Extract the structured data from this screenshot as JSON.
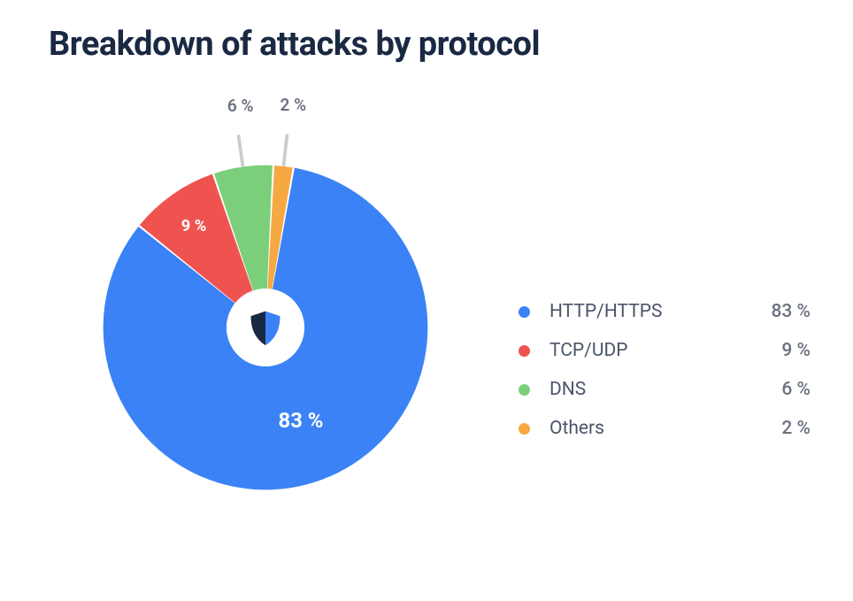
{
  "title": "Breakdown of attacks by protocol",
  "chart": {
    "type": "pie",
    "background_color": "#ffffff",
    "title_color": "#1a2942",
    "title_fontsize": 38,
    "callout_color": "#6b7280",
    "callout_fontsize": 19,
    "legend_name_color": "#4a5568",
    "legend_value_color": "#6b7280",
    "legend_fontsize": 21,
    "outer_radius": 200,
    "inner_radius": 48,
    "gap_deg": 0.7,
    "center_icon": {
      "name": "shield-icon",
      "left_color": "#1a2942",
      "right_color": "#3b82f6"
    },
    "slices": [
      {
        "name": "HTTP/HTTPS",
        "value": 83,
        "display": "83 %",
        "color": "#3b82f6",
        "label_inside": true,
        "label_big": true
      },
      {
        "name": "TCP/UDP",
        "value": 9,
        "display": "9 %",
        "color": "#ef5350",
        "label_inside": true,
        "label_big": false
      },
      {
        "name": "DNS",
        "value": 6,
        "display": "6 %",
        "color": "#7bcf7b",
        "label_inside": false,
        "label_big": false
      },
      {
        "name": "Others",
        "value": 2,
        "display": "2 %",
        "color": "#f6a942",
        "label_inside": false,
        "label_big": false
      }
    ],
    "start_angle_deg": 80,
    "direction": "ccw"
  }
}
